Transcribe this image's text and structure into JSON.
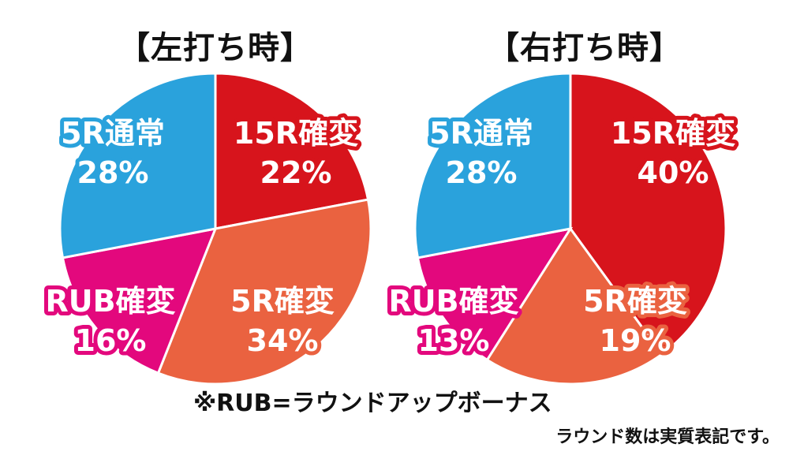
{
  "titles": {
    "left": "【左打ち時】",
    "right": "【右打ち時】"
  },
  "footnote": "※RUB=ラウンドアップボーナス",
  "note": "ラウンド数は実質表記です。",
  "colors": {
    "15R確変": "#d7141c",
    "5R確変": "#ea6240",
    "RUB確変": "#e3087d",
    "5R通常": "#2aa2dc"
  },
  "chart_data": [
    {
      "type": "pie",
      "title": "【左打ち時】",
      "labels": [
        "15R確変",
        "5R確変",
        "RUB確変",
        "5R通常"
      ],
      "values": [
        22,
        34,
        16,
        28
      ],
      "value_labels": [
        "22%",
        "34%",
        "16%",
        "28%"
      ]
    },
    {
      "type": "pie",
      "title": "【右打ち時】",
      "labels": [
        "15R確変",
        "5R確変",
        "RUB確変",
        "5R通常"
      ],
      "values": [
        40,
        19,
        13,
        28
      ],
      "value_labels": [
        "40%",
        "19%",
        "13%",
        "28%"
      ]
    }
  ]
}
